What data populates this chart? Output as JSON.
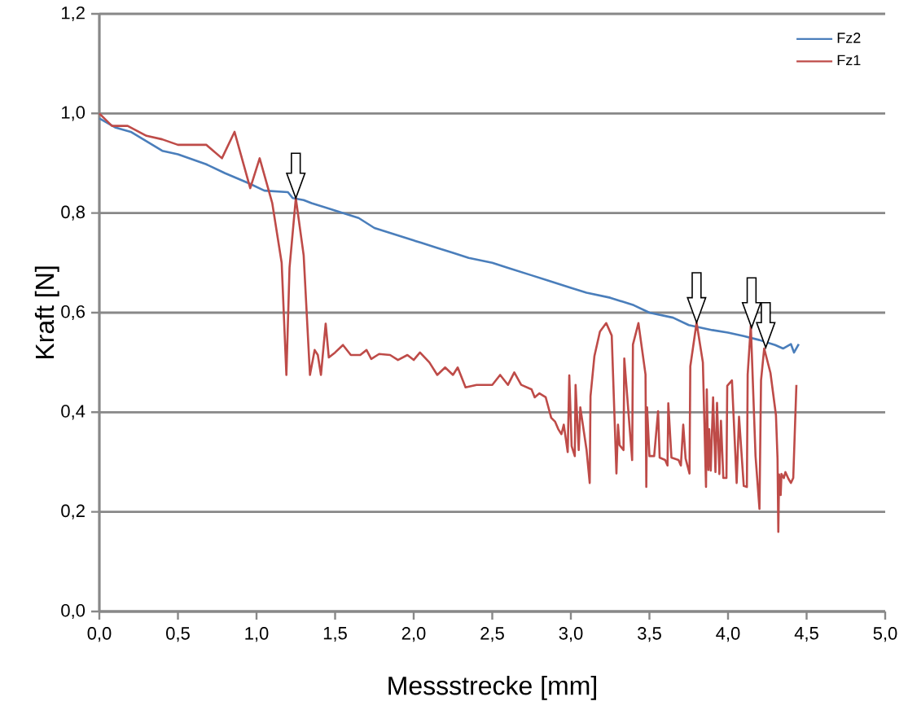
{
  "chart_data": {
    "type": "line",
    "xlabel": "Messstrecke [mm]",
    "ylabel": "Kraft [N]",
    "xlim": [
      0,
      5
    ],
    "ylim": [
      0,
      1.2
    ],
    "xticks": [
      {
        "value": 0,
        "label": "0,0"
      },
      {
        "value": 0.5,
        "label": "0,5"
      },
      {
        "value": 1,
        "label": "1,0"
      },
      {
        "value": 1.5,
        "label": "1,5"
      },
      {
        "value": 2,
        "label": "2,0"
      },
      {
        "value": 2.5,
        "label": "2,5"
      },
      {
        "value": 3,
        "label": "3,0"
      },
      {
        "value": 3.5,
        "label": "3,5"
      },
      {
        "value": 4,
        "label": "4,0"
      },
      {
        "value": 4.5,
        "label": "4,5"
      },
      {
        "value": 5,
        "label": "5,0"
      }
    ],
    "yticks": [
      {
        "value": 0,
        "label": "0,0"
      },
      {
        "value": 0.2,
        "label": "0,2"
      },
      {
        "value": 0.4,
        "label": "0,4"
      },
      {
        "value": 0.6,
        "label": "0,6"
      },
      {
        "value": 0.8,
        "label": "0,8"
      },
      {
        "value": 1.0,
        "label": "1,0"
      },
      {
        "value": 1.2,
        "label": "1,2"
      }
    ],
    "grid": "y",
    "legend": "top right",
    "marker": "none",
    "line_style": "solid",
    "series": [
      {
        "name": "Fz2",
        "color": "#4a7ebb",
        "x": [
          0,
          0.1,
          0.2,
          0.4,
          0.5,
          0.68,
          0.8,
          0.95,
          1.05,
          1.2,
          1.23,
          1.3,
          1.35,
          1.45,
          1.55,
          1.65,
          1.75,
          1.85,
          1.95,
          2.05,
          2.15,
          2.25,
          2.35,
          2.5,
          2.6,
          2.75,
          2.85,
          3.0,
          3.1,
          3.25,
          3.4,
          3.5,
          3.65,
          3.75,
          3.9,
          4.0,
          4.1,
          4.2,
          4.3,
          4.35,
          4.4,
          4.42,
          4.45
        ],
        "values": [
          0.99,
          0.972,
          0.963,
          0.925,
          0.918,
          0.898,
          0.88,
          0.86,
          0.845,
          0.842,
          0.83,
          0.826,
          0.82,
          0.81,
          0.8,
          0.79,
          0.77,
          0.76,
          0.75,
          0.74,
          0.73,
          0.72,
          0.71,
          0.7,
          0.69,
          0.675,
          0.665,
          0.65,
          0.64,
          0.63,
          0.615,
          0.6,
          0.59,
          0.575,
          0.565,
          0.56,
          0.553,
          0.545,
          0.535,
          0.528,
          0.537,
          0.52,
          0.537
        ]
      },
      {
        "name": "Fz1",
        "color": "#be4b48",
        "x": [
          0,
          0.08,
          0.18,
          0.3,
          0.4,
          0.5,
          0.68,
          0.78,
          0.86,
          0.96,
          1.02,
          1.1,
          1.16,
          1.19,
          1.21,
          1.25,
          1.3,
          1.34,
          1.37,
          1.39,
          1.41,
          1.44,
          1.46,
          1.5,
          1.55,
          1.6,
          1.66,
          1.7,
          1.73,
          1.78,
          1.85,
          1.9,
          1.96,
          2.0,
          2.04,
          2.1,
          2.15,
          2.2,
          2.25,
          2.28,
          2.33,
          2.4,
          2.5,
          2.55,
          2.6,
          2.64,
          2.684,
          2.75,
          2.77,
          2.8,
          2.84,
          2.875,
          2.9,
          2.92,
          2.94,
          2.955,
          2.98,
          2.99,
          3.005,
          3.025,
          3.03,
          3.05,
          3.06,
          3.1,
          3.12,
          3.125,
          3.15,
          3.185,
          3.225,
          3.26,
          3.29,
          3.3,
          3.31,
          3.335,
          3.34,
          3.39,
          3.395,
          3.43,
          3.475,
          3.48,
          3.485,
          3.5,
          3.53,
          3.555,
          3.565,
          3.6,
          3.615,
          3.62,
          3.64,
          3.685,
          3.7,
          3.715,
          3.73,
          3.755,
          3.76,
          3.8,
          3.84,
          3.86,
          3.865,
          3.875,
          3.88,
          3.89,
          3.905,
          3.92,
          3.93,
          3.945,
          3.955,
          3.97,
          3.99,
          3.995,
          4.025,
          4.055,
          4.07,
          4.1,
          4.12,
          4.125,
          4.145,
          4.175,
          4.2,
          4.21,
          4.23,
          4.27,
          4.305,
          4.315,
          4.32,
          4.325,
          4.335,
          4.34,
          4.355,
          4.365,
          4.385,
          4.4,
          4.415,
          4.435
        ],
        "values": [
          1.0,
          0.975,
          0.975,
          0.955,
          0.948,
          0.937,
          0.937,
          0.91,
          0.963,
          0.85,
          0.91,
          0.82,
          0.7,
          0.475,
          0.69,
          0.83,
          0.715,
          0.475,
          0.525,
          0.515,
          0.475,
          0.578,
          0.51,
          0.52,
          0.535,
          0.515,
          0.515,
          0.525,
          0.507,
          0.517,
          0.515,
          0.505,
          0.515,
          0.505,
          0.52,
          0.5,
          0.475,
          0.49,
          0.475,
          0.49,
          0.45,
          0.455,
          0.455,
          0.475,
          0.455,
          0.48,
          0.455,
          0.446,
          0.43,
          0.438,
          0.43,
          0.389,
          0.381,
          0.366,
          0.356,
          0.375,
          0.32,
          0.474,
          0.332,
          0.312,
          0.455,
          0.324,
          0.41,
          0.324,
          0.258,
          0.432,
          0.513,
          0.562,
          0.579,
          0.554,
          0.277,
          0.375,
          0.334,
          0.324,
          0.508,
          0.304,
          0.536,
          0.579,
          0.476,
          0.25,
          0.41,
          0.312,
          0.312,
          0.402,
          0.309,
          0.304,
          0.293,
          0.418,
          0.309,
          0.304,
          0.293,
          0.375,
          0.307,
          0.277,
          0.492,
          0.58,
          0.5,
          0.25,
          0.446,
          0.284,
          0.366,
          0.283,
          0.43,
          0.28,
          0.419,
          0.276,
          0.383,
          0.268,
          0.268,
          0.453,
          0.464,
          0.258,
          0.391,
          0.252,
          0.25,
          0.476,
          0.574,
          0.312,
          0.206,
          0.464,
          0.528,
          0.479,
          0.394,
          0.307,
          0.16,
          0.275,
          0.234,
          0.276,
          0.268,
          0.28,
          0.266,
          0.258,
          0.268,
          0.455
        ]
      }
    ]
  }
}
